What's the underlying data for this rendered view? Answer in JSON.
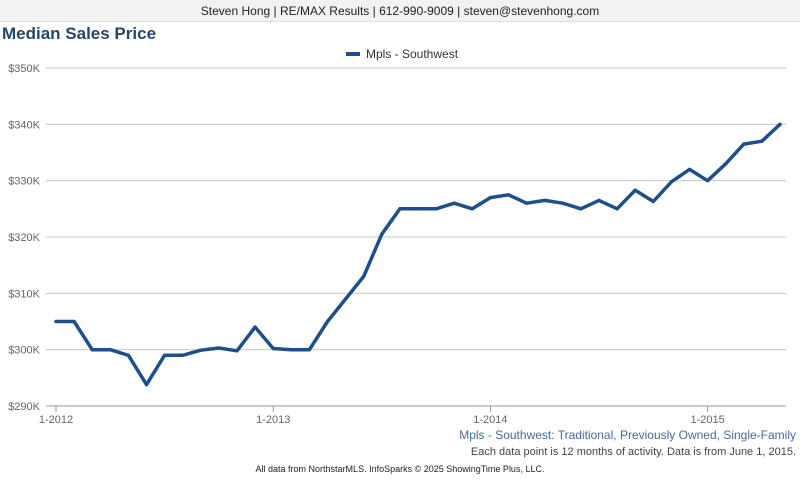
{
  "header": {
    "contact": "Steven Hong | RE/MAX Results | 612-990-9009 | steven@stevenhong.com"
  },
  "chart_title": "Median Sales Price",
  "footer": {
    "subtitle": "Mpls - Southwest: Traditional, Previously Owned, Single-Family",
    "note": "Each data point is 12 months of activity. Data is from June 1, 2015.",
    "credit": "All data from NorthstarMLS. InfoSparks © 2025 ShowingTime Plus, LLC."
  },
  "colors": {
    "series": "#1f4e8c",
    "grid": "#c8c8c8",
    "axis": "#999999"
  },
  "chart_data": {
    "type": "line",
    "title": "Median Sales Price",
    "xlabel": "",
    "ylabel": "",
    "ylim": [
      290000,
      350000
    ],
    "y_ticks": [
      290000,
      300000,
      310000,
      320000,
      330000,
      340000,
      350000
    ],
    "y_tick_labels": [
      "$290K",
      "$300K",
      "$310K",
      "$320K",
      "$330K",
      "$340K",
      "$350K"
    ],
    "x_tick_labels": [
      "1-2012",
      "1-2013",
      "1-2014",
      "1-2015"
    ],
    "grid": true,
    "legend_position": "top-center",
    "x": [
      "1-2012",
      "2-2012",
      "3-2012",
      "4-2012",
      "5-2012",
      "6-2012",
      "7-2012",
      "8-2012",
      "9-2012",
      "10-2012",
      "11-2012",
      "12-2012",
      "1-2013",
      "2-2013",
      "3-2013",
      "4-2013",
      "5-2013",
      "6-2013",
      "7-2013",
      "8-2013",
      "9-2013",
      "10-2013",
      "11-2013",
      "12-2013",
      "1-2014",
      "2-2014",
      "3-2014",
      "4-2014",
      "5-2014",
      "6-2014",
      "7-2014",
      "8-2014",
      "9-2014",
      "10-2014",
      "11-2014",
      "12-2014",
      "1-2015",
      "2-2015",
      "3-2015",
      "4-2015",
      "5-2015"
    ],
    "series": [
      {
        "name": "Mpls - Southwest",
        "values": [
          305000,
          305000,
          300000,
          300000,
          299000,
          293800,
          299000,
          299000,
          299900,
          300300,
          299800,
          304000,
          300200,
          300000,
          300000,
          305000,
          309000,
          313000,
          320500,
          325000,
          325000,
          325000,
          326000,
          325000,
          327000,
          327500,
          326000,
          326500,
          326000,
          325000,
          326500,
          325000,
          328300,
          326300,
          329800,
          332000,
          330000,
          333000,
          336500,
          337000,
          340000
        ]
      }
    ]
  }
}
